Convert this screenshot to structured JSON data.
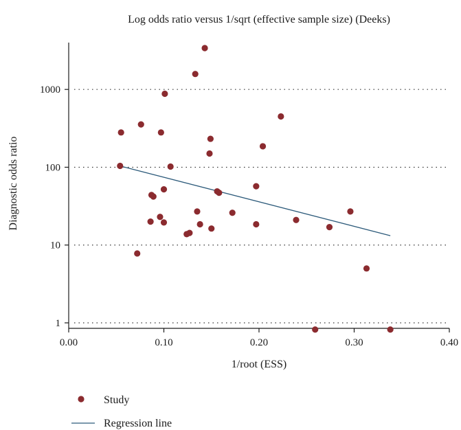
{
  "chart_data": {
    "type": "scatter",
    "title": "Log odds ratio versus 1/sqrt (effective sample size) (Deeks)",
    "xlabel": "1/root (ESS)",
    "ylabel": "Diagnostic odds ratio",
    "xlim": [
      0.0,
      0.4
    ],
    "ylim": [
      0.85,
      4000
    ],
    "yscale": "log",
    "x_ticks": [
      0.0,
      0.1,
      0.2,
      0.3,
      0.4
    ],
    "x_tick_labels": [
      "0.00",
      "0.10",
      "0.20",
      "0.30",
      "0.40"
    ],
    "y_ticks": [
      1,
      10,
      100,
      1000
    ],
    "y_tick_labels": [
      "1",
      "10",
      "100",
      "1000"
    ],
    "grid": "horizontal dotted",
    "legend": "bottom-left",
    "colors": {
      "study": "#8b2b2f",
      "regression": "#2c5a7a"
    },
    "series": [
      {
        "name": "Study",
        "kind": "scatter",
        "x": [
          0.143,
          0.133,
          0.101,
          0.223,
          0.055,
          0.076,
          0.097,
          0.149,
          0.204,
          0.148,
          0.054,
          0.107,
          0.197,
          0.156,
          0.158,
          0.1,
          0.087,
          0.089,
          0.135,
          0.172,
          0.296,
          0.096,
          0.086,
          0.239,
          0.1,
          0.138,
          0.274,
          0.15,
          0.197,
          0.127,
          0.124,
          0.072,
          0.313,
          0.259,
          0.338
        ],
        "y": [
          3400,
          1580,
          880,
          450,
          280,
          355,
          280,
          232,
          186,
          150,
          104,
          102,
          57,
          49,
          47,
          52,
          44,
          42,
          27,
          26,
          27,
          23,
          20,
          21,
          19.5,
          18.5,
          17,
          16.3,
          18.5,
          14.3,
          13.8,
          7.8,
          5,
          0.82,
          0.82
        ]
      },
      {
        "name": "Regression line",
        "kind": "line",
        "x": [
          0.055,
          0.338
        ],
        "y": [
          103,
          13.2
        ]
      }
    ]
  }
}
